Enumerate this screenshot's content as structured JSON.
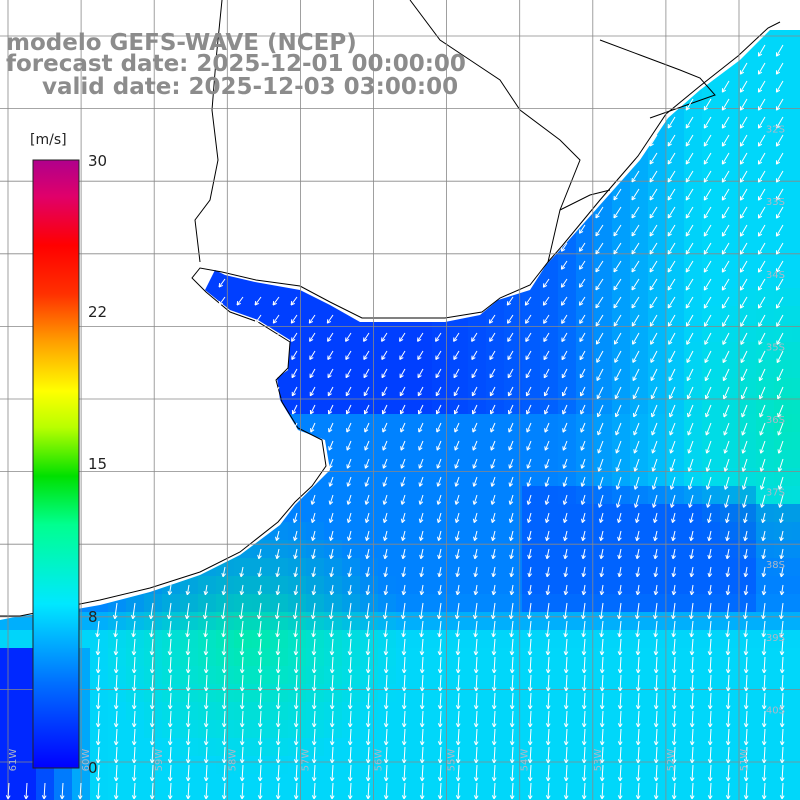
{
  "title": {
    "line1": "modelo GEFS-WAVE (NCEP)",
    "line2": "forecast date: 2025-12-01 00:00:00",
    "line3": "valid date: 2025-12-03 03:00:00"
  },
  "colorbar": {
    "unit": "[m/s]",
    "min": 0,
    "max": 30,
    "ticks": [
      "30",
      "22",
      "15",
      "8",
      "0"
    ],
    "tick_values": [
      30,
      22,
      15,
      8,
      0
    ],
    "colors": [
      "#0000ff",
      "#00a0ff",
      "#00e8ff",
      "#00ff80",
      "#00e000",
      "#c8ff00",
      "#ffff00",
      "#ffa000",
      "#ff2000",
      "#ff0000",
      "#d0007c",
      "#b00090"
    ]
  },
  "map": {
    "lat_labels": [
      "32S",
      "33S",
      "34S",
      "35S",
      "36S",
      "37S",
      "38S",
      "39S",
      "40S"
    ],
    "lon_labels": [
      "61W",
      "60W",
      "59W",
      "58W",
      "57W",
      "56W",
      "55W",
      "54W",
      "53W",
      "52W",
      "51W"
    ],
    "grid_color": "#888888",
    "land_color": "#ffffff",
    "coast_color": "#000000",
    "vector_color": "#ffffff"
  }
}
